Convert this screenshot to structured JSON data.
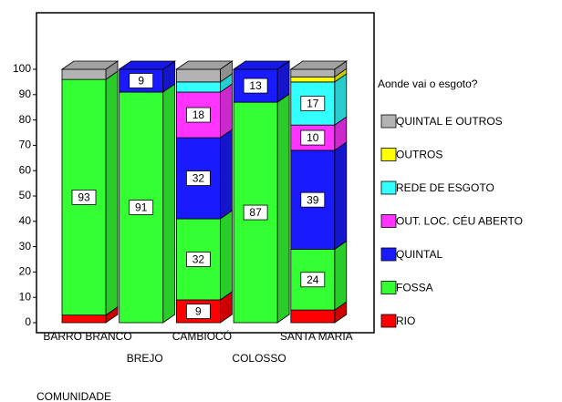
{
  "chart_data": {
    "type": "bar3d_stacked",
    "axis_title": "COMUNIDADE",
    "legend_title": "Aonde vai o esgoto?",
    "categories": [
      "BARRO BRANCO",
      "BREJO",
      "CAMBIOCÓ",
      "COLOSSO",
      "SANTA MARIA"
    ],
    "series": [
      {
        "name": "RIO",
        "color": "#ff0000",
        "values": [
          3,
          0,
          9,
          0,
          5
        ]
      },
      {
        "name": "FOSSA",
        "color": "#33ff33",
        "values": [
          93,
          91,
          32,
          87,
          24
        ]
      },
      {
        "name": "QUINTAL",
        "color": "#1a1aff",
        "values": [
          0,
          9,
          32,
          13,
          39
        ]
      },
      {
        "name": "OUT. LOC. CÉU ABERTO",
        "color": "#ff33ff",
        "values": [
          0,
          0,
          18,
          0,
          10
        ]
      },
      {
        "name": "REDE DE ESGOTO",
        "color": "#33ffff",
        "values": [
          0,
          0,
          4,
          0,
          17
        ]
      },
      {
        "name": "OUTROS",
        "color": "#ffff00",
        "values": [
          0,
          0,
          0,
          0,
          2
        ]
      },
      {
        "name": "QUINTAL E OUTROS",
        "color": "#b3b3b3",
        "values": [
          4,
          0,
          5,
          0,
          3
        ]
      }
    ],
    "ylim": [
      0,
      100
    ],
    "yticks": [
      0,
      10,
      20,
      30,
      40,
      50,
      60,
      70,
      80,
      90,
      100
    ]
  }
}
